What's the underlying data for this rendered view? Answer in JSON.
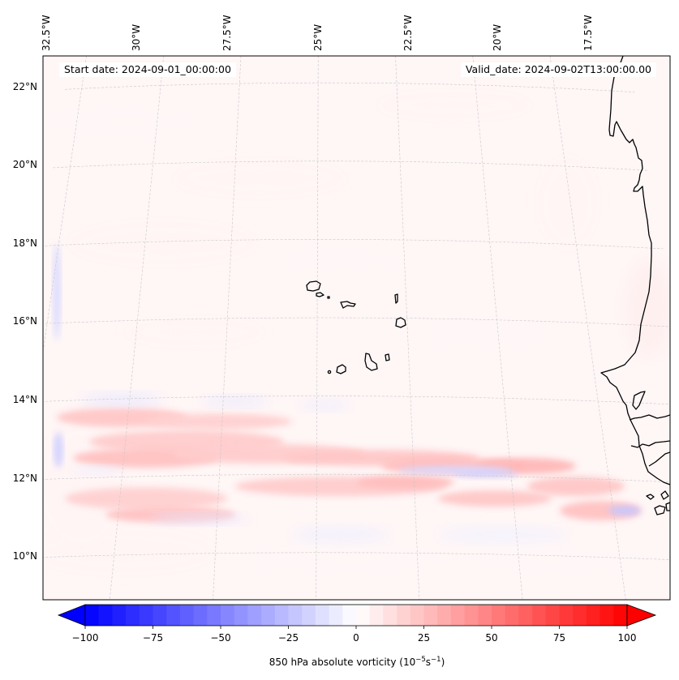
{
  "figure": {
    "start_date_label": "Start date: 2024-09-01_00:00:00",
    "valid_date_label": "Valid_date: 2024-09-02T13:00:00.00"
  },
  "chart_data": {
    "type": "heatmap",
    "title": "",
    "subtitle": "",
    "field": "850 hPa absolute vorticity",
    "units": "10^-5 s^-1",
    "colorbar": {
      "label_prefix": "850 hPa absolute vorticity (10",
      "label_exp1": "−5",
      "label_mid": "s",
      "label_exp2": "−1",
      "label_suffix": ")",
      "colormap": "bwr",
      "vmin": -100,
      "vmax": 100,
      "step": 5,
      "extend": "both",
      "ticks": [
        -100,
        -75,
        -50,
        -25,
        0,
        25,
        50,
        75,
        100
      ],
      "tick_labels": [
        "−100",
        "−75",
        "−50",
        "−25",
        "0",
        "25",
        "50",
        "75",
        "100"
      ],
      "orientation": "horizontal",
      "placement": "bottom"
    },
    "map": {
      "lon_range": [
        -32.6,
        -15.2
      ],
      "lat_range": [
        8.9,
        22.8
      ],
      "lon_ticks": [
        -32.5,
        -30,
        -27.5,
        -25,
        -22.5,
        -20,
        -17.5
      ],
      "lon_tick_labels": [
        "32.5°W",
        "30°W",
        "27.5°W",
        "25°W",
        "22.5°W",
        "20°W",
        "17.5°W"
      ],
      "lat_ticks": [
        22,
        20,
        18,
        16,
        14,
        12,
        10
      ],
      "lat_tick_labels": [
        "22°N",
        "20°N",
        "18°N",
        "16°N",
        "14°N",
        "12°N",
        "10°N"
      ],
      "gridlines": true,
      "coastlines": true,
      "features": [
        "Cape Verde islands",
        "West African coast (Mauritania, Senegal, Gambia, Guinea-Bissau)"
      ]
    },
    "features": [
      {
        "name": "positive vorticity band north",
        "lat": 13.5,
        "lon_range": [
          -32,
          -25
        ],
        "value": 20
      },
      {
        "name": "positive vorticity band central",
        "lat": 12.6,
        "lon_range": [
          -32,
          -17
        ],
        "value": 25
      },
      {
        "name": "positive vorticity band south",
        "lat": 11.3,
        "lon_range": [
          -31,
          -22
        ],
        "value": 22
      },
      {
        "name": "negative vorticity strip",
        "lat": 12.2,
        "lon_range": [
          -23,
          -19
        ],
        "value": -15
      },
      {
        "name": "negative vorticity west edge",
        "lat": 15.5,
        "lon_range": [
          -32.2,
          -31.8
        ],
        "value": -15
      },
      {
        "name": "negative vorticity near coast",
        "lat": 11.2,
        "lon_range": [
          -17.3,
          -16.2
        ],
        "value": -20
      },
      {
        "name": "background",
        "value": 3
      }
    ]
  }
}
